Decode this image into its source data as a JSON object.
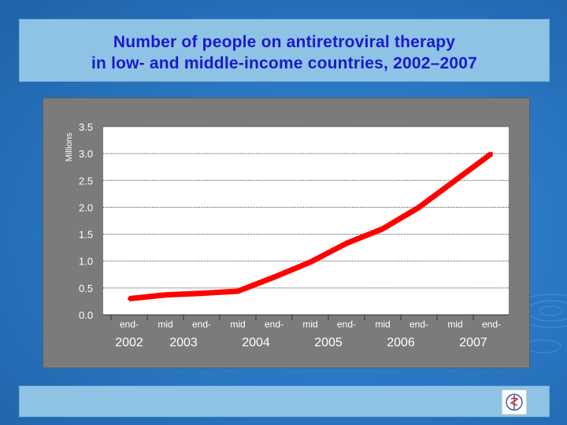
{
  "title": {
    "line1": "Number of people on antiretroviral therapy",
    "line2": "in low- and middle-income countries, 2002–2007"
  },
  "colors": {
    "title_text": "#1a1acc",
    "line": "#ff0000",
    "panel": "#7b7b7b",
    "plot_area": "#ffffff"
  },
  "icons": {
    "logo": "who-emblem-icon"
  },
  "chart_data": {
    "type": "line",
    "title": "Number of people on antiretroviral therapy in low- and middle-income countries, 2002–2007",
    "ylabel": "Millions",
    "xlabel": "",
    "ylim": [
      0,
      3.5
    ],
    "yticks": [
      "0.0",
      "0.5",
      "1.0",
      "1.5",
      "2.0",
      "2.5",
      "3.0",
      "3.5"
    ],
    "grid": true,
    "legend": "none",
    "categories": [
      "end-2002",
      "mid-2003",
      "end-2003",
      "mid-2004",
      "end-2004",
      "mid-2005",
      "end-2005",
      "mid-2006",
      "end-2006",
      "mid-2007",
      "end-2007"
    ],
    "tick_top_labels": [
      "end-",
      "mid",
      "end-",
      "mid",
      "end-",
      "mid",
      "end-",
      "mid",
      "end-",
      "mid",
      "end-"
    ],
    "year_labels": [
      "2002",
      "2003",
      "2004",
      "2005",
      "2006",
      "2007"
    ],
    "series": [
      {
        "values": [
          0.3,
          0.37,
          0.4,
          0.44,
          0.7,
          0.98,
          1.33,
          1.6,
          2.0,
          2.5,
          3.0
        ]
      }
    ]
  }
}
